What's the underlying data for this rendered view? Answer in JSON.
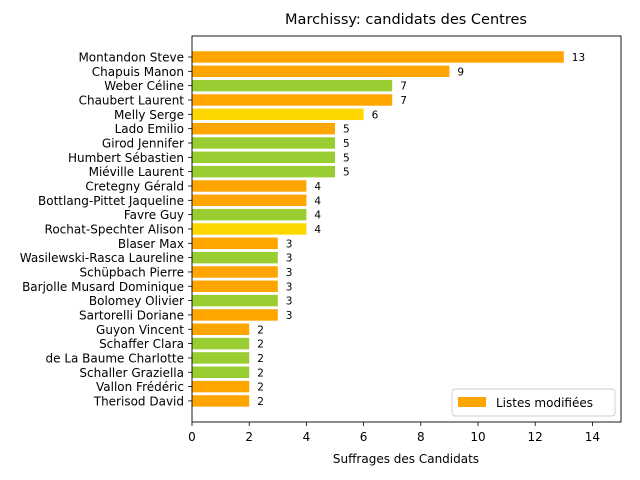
{
  "chart_data": {
    "type": "bar",
    "orientation": "horizontal",
    "title": "Marchissy: candidats des Centres",
    "xlabel": "Suffrages des Candidats",
    "ylabel": "",
    "xlim": [
      0,
      15
    ],
    "xticks": [
      0,
      2,
      4,
      6,
      8,
      10,
      12,
      14
    ],
    "grid": false,
    "legend": {
      "placement": "bottom-right",
      "entries": [
        {
          "label": "Listes modifiées",
          "color": "#FFA500"
        }
      ]
    },
    "categories": [
      "Montandon Steve",
      "Chapuis Manon",
      "Weber Céline",
      "Chaubert Laurent",
      "Melly Serge",
      "Lado Emilio",
      "Girod Jennifer",
      "Humbert Sébastien",
      "Miéville Laurent",
      "Cretegny Gérald",
      "Bottlang-Pittet Jaqueline",
      "Favre Guy",
      "Rochat-Spechter Alison",
      "Blaser Max",
      "Wasilewski-Rasca Laureline",
      "Schüpbach Pierre",
      "Barjolle Musard Dominique",
      "Bolomey Olivier",
      "Sartorelli Doriane",
      "Guyon Vincent",
      "Schaffer Clara",
      "de La Baume Charlotte",
      "Schaller Graziella",
      "Vallon Frédéric",
      "Therisod David"
    ],
    "values": [
      13,
      9,
      7,
      7,
      6,
      5,
      5,
      5,
      5,
      4,
      4,
      4,
      4,
      3,
      3,
      3,
      3,
      3,
      3,
      2,
      2,
      2,
      2,
      2,
      2
    ],
    "value_labels": [
      "13",
      "9",
      "7",
      "7",
      "6",
      "5",
      "5",
      "5",
      "5",
      "4",
      "4",
      "4",
      "4",
      "3",
      "3",
      "3",
      "3",
      "3",
      "3",
      "2",
      "2",
      "2",
      "2",
      "2",
      "2"
    ],
    "colors": [
      "#FFA500",
      "#FFA500",
      "#9ACD32",
      "#FFA500",
      "#FFD700",
      "#FFA500",
      "#9ACD32",
      "#9ACD32",
      "#9ACD32",
      "#FFA500",
      "#FFA500",
      "#9ACD32",
      "#FFD700",
      "#FFA500",
      "#9ACD32",
      "#FFA500",
      "#FFA500",
      "#9ACD32",
      "#FFA500",
      "#FFA500",
      "#9ACD32",
      "#9ACD32",
      "#9ACD32",
      "#FFA500",
      "#FFA500"
    ]
  }
}
